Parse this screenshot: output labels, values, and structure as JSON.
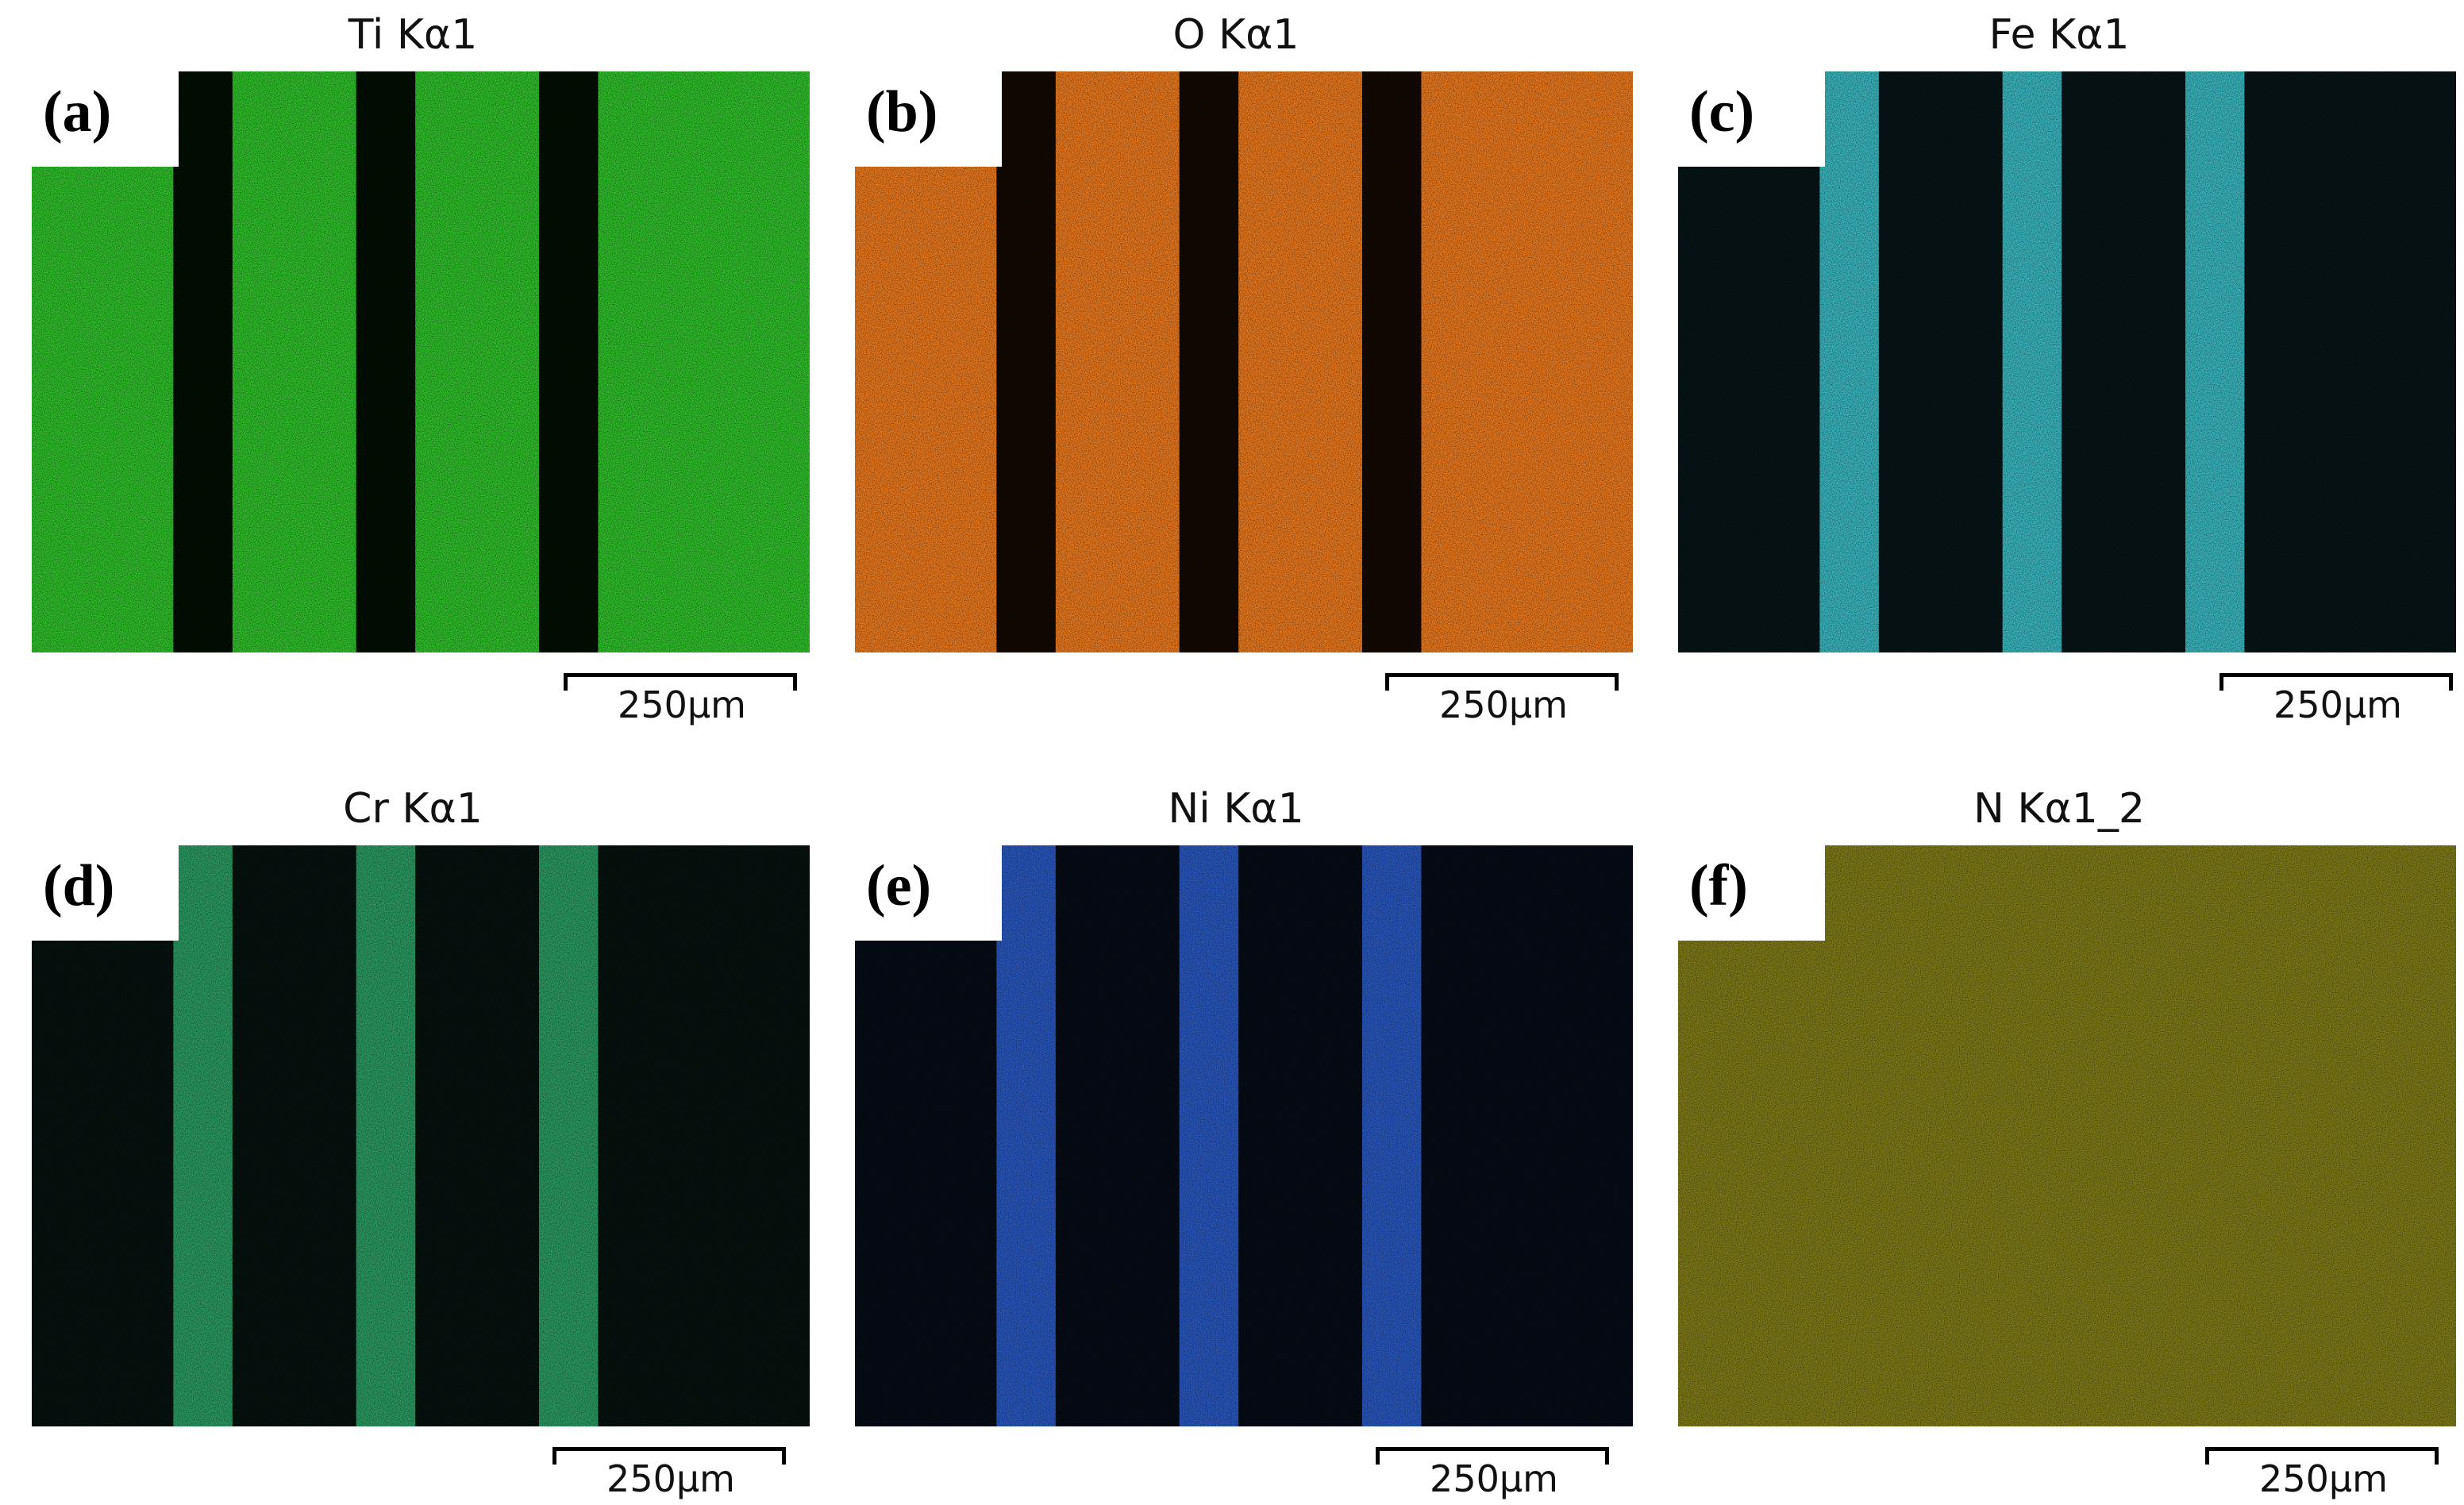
{
  "panels": [
    {
      "label": "(a)",
      "title": "Ti Kα1",
      "color": "#2fbf2a",
      "stripe_mode": "dark",
      "scale": "250μm"
    },
    {
      "label": "(b)",
      "title": "O Kα1",
      "color": "#e8781e",
      "stripe_mode": "dark",
      "scale": "250μm"
    },
    {
      "label": "(c)",
      "title": "Fe Kα1",
      "color": "#3fc7cf",
      "stripe_mode": "bright",
      "scale": "250μm"
    },
    {
      "label": "(d)",
      "title": "Cr Kα1",
      "color": "#2fa86a",
      "stripe_mode": "bright",
      "scale": "250μm"
    },
    {
      "label": "(e)",
      "title": "Ni Kα1",
      "color": "#2d5fd0",
      "stripe_mode": "bright",
      "scale": "250μm"
    },
    {
      "label": "(f)",
      "title": "N Kα1_2",
      "color": "#a8a320",
      "stripe_mode": "uniform",
      "scale": "250μm"
    }
  ]
}
